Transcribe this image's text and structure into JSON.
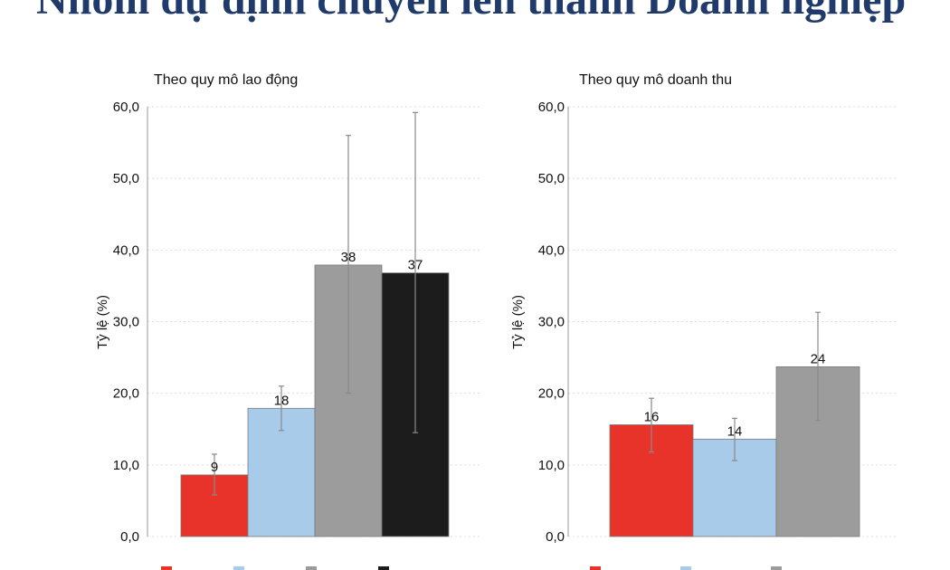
{
  "title": "Nhóm dự định chuyển lên thành Doanh nghiệp",
  "chart_data": [
    {
      "type": "bar",
      "title": "Theo quy mô lao động",
      "ylabel": "Tỷ lệ (%)",
      "ylim": [
        0,
        60
      ],
      "yticks": [
        "0,0",
        "10,0",
        "20,0",
        "30,0",
        "40,0",
        "50,0",
        "60,0"
      ],
      "grid": true,
      "legend_position": "bottom",
      "bars": [
        {
          "value": 8.6,
          "label": "9",
          "err_low": 5.8,
          "err_high": 11.5,
          "color": "#e8332a"
        },
        {
          "value": 17.9,
          "label": "18",
          "err_low": 14.8,
          "err_high": 21.0,
          "color": "#a8cbea"
        },
        {
          "value": 37.9,
          "label": "38",
          "err_low": 20.0,
          "err_high": 56.0,
          "color": "#9c9c9c"
        },
        {
          "value": 36.8,
          "label": "37",
          "err_low": 14.5,
          "err_high": 59.2,
          "color": "#1c1c1c"
        }
      ]
    },
    {
      "type": "bar",
      "title": "Theo quy mô doanh thu",
      "ylabel": "Tỷ lệ (%)",
      "ylim": [
        0,
        60
      ],
      "yticks": [
        "0,0",
        "10,0",
        "20,0",
        "30,0",
        "40,0",
        "50,0",
        "60,0"
      ],
      "grid": true,
      "legend_position": "bottom",
      "bars": [
        {
          "value": 15.6,
          "label": "16",
          "err_low": 11.8,
          "err_high": 19.3,
          "color": "#e8332a"
        },
        {
          "value": 13.6,
          "label": "14",
          "err_low": 10.6,
          "err_high": 16.5,
          "color": "#a8cbea"
        },
        {
          "value": 23.7,
          "label": "24",
          "err_low": 16.2,
          "err_high": 31.3,
          "color": "#9c9c9c"
        }
      ]
    }
  ]
}
